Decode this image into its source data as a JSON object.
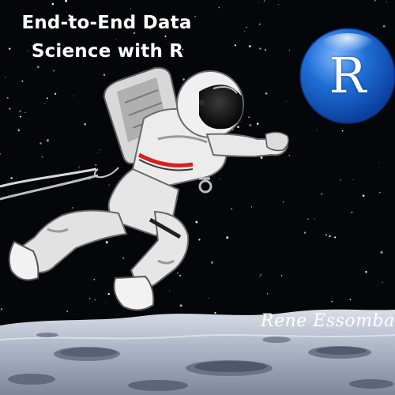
{
  "cover": {
    "title_line_1": "End-to-End Data",
    "title_line_2": "Science with R",
    "badge_letter": "R",
    "signature": "Rene Essomba"
  },
  "colors": {
    "sky": "#05060a",
    "badge_blue": "#1f6fd6",
    "badge_dark_blue": "#0b3f9e",
    "moon_surface": "#b9c2d1",
    "suit_white": "#e6e6e6",
    "suit_shadow": "#8a8a8a",
    "accent_red": "#d81f1f",
    "text": "#ffffff"
  },
  "illustration": {
    "subject": "astronaut floating above lunar surface",
    "icons": [
      "r-logo-icon",
      "astronaut-icon",
      "moon-surface-icon",
      "star-field-icon"
    ]
  }
}
